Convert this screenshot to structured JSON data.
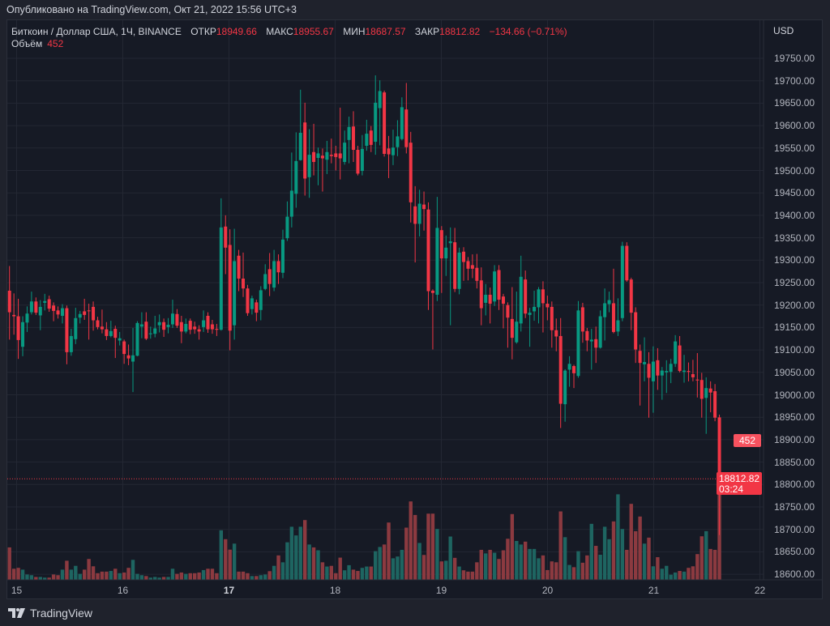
{
  "published": "Опубликовано на TradingView.com, Окт 21, 2022 15:56 UTC+3",
  "legend": {
    "symbol": "Биткоин / Доллар США, 1Ч, BINANCE",
    "open_label": "ОТКР",
    "open": "18949.66",
    "high_label": "МАКС",
    "high": "18955.67",
    "low_label": "МИН",
    "low": "18687.57",
    "close_label": "ЗАКР",
    "close": "18812.82",
    "change": "−134.66 (−0.71%)",
    "volume_label": "Объём",
    "volume": "452"
  },
  "price_axis": {
    "currency": "USD",
    "ticks": [
      "19750.00",
      "19700.00",
      "19650.00",
      "19600.00",
      "19550.00",
      "19500.00",
      "19450.00",
      "19400.00",
      "19350.00",
      "19300.00",
      "19250.00",
      "19200.00",
      "19150.00",
      "19100.00",
      "19050.00",
      "19000.00",
      "18950.00",
      "18900.00",
      "18850.00",
      "18800.00",
      "18750.00",
      "18700.00",
      "18650.00",
      "18600.00"
    ],
    "last_price_label": "18812.82",
    "countdown": "03:24",
    "last_volume_label": "452"
  },
  "time_axis": {
    "ticks": [
      {
        "label": "15",
        "bold": false
      },
      {
        "label": "16",
        "bold": false
      },
      {
        "label": "17",
        "bold": true
      },
      {
        "label": "18",
        "bold": false
      },
      {
        "label": "19",
        "bold": false
      },
      {
        "label": "20",
        "bold": false
      },
      {
        "label": "21",
        "bold": false
      },
      {
        "label": "22",
        "bold": false
      }
    ]
  },
  "footer": {
    "logo_text": "TradingView"
  },
  "colors": {
    "up": "#089981",
    "down": "#f23645",
    "up_volume": "#1e6561",
    "down_volume": "#8c3a40",
    "background": "#161a25",
    "grid": "#232733"
  },
  "chart_data": {
    "type": "candlestick",
    "title": "Биткоин / Доллар США, 1Ч, BINANCE",
    "interval": "1h",
    "x_range": [
      "Oct 14 2022 22:00",
      "Oct 21 2022 15:00"
    ],
    "ylim": [
      18600,
      19750
    ],
    "volume_axis": "overlay",
    "grid": true,
    "columns": [
      "open",
      "high",
      "low",
      "close",
      "volume"
    ],
    "candles": [
      [
        19232,
        19287,
        19123,
        19184,
        146
      ],
      [
        19178,
        19226,
        19134,
        19175,
        50
      ],
      [
        19175,
        19214,
        19080,
        19122,
        54
      ],
      [
        19107,
        19175,
        19086,
        19162,
        46
      ],
      [
        19161,
        19197,
        19140,
        19181,
        24
      ],
      [
        19184,
        19230,
        19179,
        19208,
        21
      ],
      [
        19208,
        19217,
        19178,
        19183,
        13
      ],
      [
        19177,
        19211,
        19144,
        19196,
        13
      ],
      [
        19205,
        19225,
        19188,
        19209,
        10
      ],
      [
        19213,
        19221,
        19185,
        19192,
        10
      ],
      [
        19199,
        19206,
        19164,
        19187,
        24
      ],
      [
        19188,
        19197,
        19170,
        19179,
        21
      ],
      [
        19176,
        19202,
        19159,
        19193,
        46
      ],
      [
        19193,
        19199,
        19068,
        19095,
        86
      ],
      [
        19095,
        19147,
        19087,
        19131,
        46
      ],
      [
        19124,
        19194,
        19113,
        19171,
        63
      ],
      [
        19172,
        19187,
        19159,
        19180,
        27
      ],
      [
        19186,
        19214,
        19167,
        19178,
        46
      ],
      [
        19188,
        19203,
        19123,
        19187,
        94
      ],
      [
        19196,
        19208,
        19143,
        19166,
        61
      ],
      [
        19166,
        19174,
        19146,
        19151,
        30
      ],
      [
        19152,
        19190,
        19137,
        19146,
        37
      ],
      [
        19146,
        19162,
        19122,
        19131,
        37
      ],
      [
        19131,
        19165,
        19128,
        19142,
        40
      ],
      [
        19147,
        19154,
        19082,
        19127,
        50
      ],
      [
        19121,
        19140,
        19110,
        19126,
        30
      ],
      [
        19119,
        19123,
        19069,
        19091,
        33
      ],
      [
        19088,
        19112,
        19066,
        19081,
        54
      ],
      [
        19074,
        19149,
        19006,
        19088,
        90
      ],
      [
        19087,
        19164,
        19086,
        19160,
        27
      ],
      [
        19152,
        19184,
        19126,
        19157,
        21
      ],
      [
        19163,
        19184,
        19122,
        19125,
        17
      ],
      [
        19135,
        19152,
        19125,
        19137,
        10
      ],
      [
        19136,
        19176,
        19128,
        19148,
        13
      ],
      [
        19155,
        19179,
        19139,
        19162,
        10
      ],
      [
        19162,
        19170,
        19129,
        19145,
        13
      ],
      [
        19151,
        19171,
        19137,
        19156,
        13
      ],
      [
        19157,
        19212,
        19149,
        19181,
        50
      ],
      [
        19180,
        19191,
        19149,
        19154,
        27
      ],
      [
        19162,
        19176,
        19115,
        19141,
        33
      ],
      [
        19141,
        19170,
        19137,
        19158,
        27
      ],
      [
        19165,
        19170,
        19135,
        19145,
        30
      ],
      [
        19152,
        19163,
        19136,
        19146,
        30
      ],
      [
        19146,
        19155,
        19123,
        19141,
        33
      ],
      [
        19151,
        19188,
        19140,
        19166,
        44
      ],
      [
        19176,
        19184,
        19138,
        19146,
        50
      ],
      [
        19157,
        19167,
        19136,
        19146,
        50
      ],
      [
        19147,
        19158,
        19131,
        19145,
        30
      ],
      [
        19145,
        19438,
        19143,
        19373,
        223
      ],
      [
        19375,
        19400,
        19269,
        19328,
        183
      ],
      [
        19334,
        19369,
        19099,
        19143,
        136
      ],
      [
        19155,
        19370,
        19123,
        19298,
        163
      ],
      [
        19310,
        19323,
        19231,
        19259,
        37
      ],
      [
        19259,
        19317,
        19218,
        19237,
        37
      ],
      [
        19237,
        19245,
        19176,
        19182,
        30
      ],
      [
        19191,
        19221,
        19179,
        19215,
        17
      ],
      [
        19206,
        19212,
        19164,
        19183,
        17
      ],
      [
        19189,
        19242,
        19166,
        19233,
        21
      ],
      [
        19236,
        19291,
        19233,
        19269,
        24
      ],
      [
        19280,
        19316,
        19220,
        19247,
        39
      ],
      [
        19239,
        19323,
        19231,
        19298,
        63
      ],
      [
        19298,
        19313,
        19247,
        19273,
        110
      ],
      [
        19272,
        19368,
        19260,
        19346,
        79
      ],
      [
        19349,
        19431,
        19343,
        19397,
        169
      ],
      [
        19397,
        19540,
        19373,
        19455,
        239
      ],
      [
        19448,
        19585,
        19417,
        19521,
        200
      ],
      [
        19523,
        19680,
        19522,
        19584,
        239
      ],
      [
        19607,
        19651,
        19444,
        19482,
        269
      ],
      [
        19485,
        19592,
        19439,
        19535,
        159
      ],
      [
        19541,
        19604,
        19489,
        19519,
        146
      ],
      [
        19528,
        19551,
        19467,
        19538,
        133
      ],
      [
        19533,
        19549,
        19453,
        19527,
        79
      ],
      [
        19524,
        19566,
        19492,
        19541,
        60
      ],
      [
        19535,
        19571,
        19516,
        19532,
        63
      ],
      [
        19538,
        19555,
        19500,
        19530,
        30
      ],
      [
        19538,
        19640,
        19480,
        19527,
        100
      ],
      [
        19519,
        19589,
        19513,
        19562,
        43
      ],
      [
        19568,
        19620,
        19516,
        19597,
        66
      ],
      [
        19598,
        19632,
        19519,
        19546,
        46
      ],
      [
        19546,
        19555,
        19489,
        19493,
        40
      ],
      [
        19499,
        19579,
        19489,
        19548,
        54
      ],
      [
        19555,
        19613,
        19544,
        19582,
        60
      ],
      [
        19589,
        19599,
        19541,
        19557,
        60
      ],
      [
        19564,
        19712,
        19535,
        19651,
        129
      ],
      [
        19639,
        19701,
        19556,
        19677,
        148
      ],
      [
        19674,
        19678,
        19531,
        19537,
        159
      ],
      [
        19549,
        19577,
        19483,
        19536,
        258
      ],
      [
        19534,
        19591,
        19512,
        19551,
        97
      ],
      [
        19552,
        19612,
        19532,
        19576,
        105
      ],
      [
        19570,
        19663,
        19567,
        19641,
        135
      ],
      [
        19636,
        19695,
        19538,
        19552,
        235
      ],
      [
        19562,
        19586,
        19384,
        19429,
        353
      ],
      [
        19420,
        19465,
        19295,
        19381,
        292
      ],
      [
        19381,
        19457,
        19353,
        19426,
        166
      ],
      [
        19424,
        19453,
        19366,
        19414,
        112
      ],
      [
        19413,
        19429,
        19189,
        19231,
        298
      ],
      [
        19232,
        19235,
        19101,
        19227,
        298
      ],
      [
        19223,
        19441,
        19209,
        19372,
        229
      ],
      [
        19367,
        19376,
        19227,
        19304,
        83
      ],
      [
        19304,
        19355,
        19265,
        19328,
        86
      ],
      [
        19338,
        19373,
        19155,
        19342,
        195
      ],
      [
        19340,
        19372,
        19229,
        19236,
        99
      ],
      [
        19236,
        19328,
        19224,
        19317,
        60
      ],
      [
        19319,
        19329,
        19254,
        19296,
        43
      ],
      [
        19298,
        19307,
        19255,
        19281,
        37
      ],
      [
        19289,
        19313,
        19260,
        19281,
        37
      ],
      [
        19283,
        19314,
        19237,
        19254,
        79
      ],
      [
        19255,
        19284,
        19155,
        19193,
        135
      ],
      [
        19205,
        19247,
        19177,
        19223,
        119
      ],
      [
        19223,
        19239,
        19159,
        19203,
        135
      ],
      [
        19208,
        19289,
        19198,
        19275,
        122
      ],
      [
        19278,
        19289,
        19189,
        19212,
        94
      ],
      [
        19219,
        19225,
        19148,
        19203,
        133
      ],
      [
        19200,
        19206,
        19105,
        19172,
        185
      ],
      [
        19169,
        19240,
        19079,
        19127,
        296
      ],
      [
        19117,
        19230,
        19114,
        19163,
        175
      ],
      [
        19159,
        19310,
        19141,
        19263,
        159
      ],
      [
        19257,
        19277,
        19171,
        19181,
        172
      ],
      [
        19178,
        19194,
        19107,
        19183,
        139
      ],
      [
        19186,
        19232,
        19165,
        19196,
        139
      ],
      [
        19195,
        19240,
        19159,
        19235,
        97
      ],
      [
        19235,
        19253,
        19139,
        19204,
        110
      ],
      [
        19203,
        19221,
        19166,
        19195,
        44
      ],
      [
        19196,
        19208,
        19105,
        19144,
        83
      ],
      [
        19144,
        19170,
        19097,
        19130,
        79
      ],
      [
        19131,
        19171,
        18926,
        18980,
        308
      ],
      [
        18979,
        19057,
        18940,
        19054,
        192
      ],
      [
        19056,
        19086,
        19018,
        19069,
        67
      ],
      [
        19064,
        19067,
        19015,
        19048,
        57
      ],
      [
        19042,
        19209,
        19038,
        19188,
        129
      ],
      [
        19195,
        19205,
        19116,
        19141,
        77
      ],
      [
        19142,
        19149,
        19097,
        19121,
        110
      ],
      [
        19119,
        19147,
        19056,
        19123,
        252
      ],
      [
        19124,
        19152,
        19071,
        19105,
        153
      ],
      [
        19105,
        19188,
        19103,
        19175,
        113
      ],
      [
        19173,
        19237,
        19121,
        19204,
        239
      ],
      [
        19202,
        19230,
        19184,
        19211,
        183
      ],
      [
        19204,
        19281,
        19137,
        19140,
        263
      ],
      [
        19141,
        19215,
        19131,
        19166,
        385
      ],
      [
        19171,
        19341,
        19164,
        19332,
        229
      ],
      [
        19332,
        19340,
        19252,
        19255,
        135
      ],
      [
        19257,
        19261,
        19144,
        19183,
        342
      ],
      [
        19184,
        19195,
        19071,
        19101,
        219
      ],
      [
        19098,
        19112,
        18976,
        19071,
        285
      ],
      [
        19068,
        19128,
        19030,
        19073,
        163
      ],
      [
        19069,
        19095,
        18949,
        19038,
        190
      ],
      [
        19030,
        19108,
        18960,
        19074,
        61
      ],
      [
        19077,
        19104,
        19011,
        19043,
        102
      ],
      [
        19043,
        19062,
        18989,
        19054,
        50
      ],
      [
        19050,
        19077,
        19004,
        19053,
        63
      ],
      [
        19051,
        19080,
        19026,
        19069,
        23
      ],
      [
        19069,
        19133,
        19062,
        19119,
        33
      ],
      [
        19110,
        19131,
        19050,
        19053,
        40
      ],
      [
        19051,
        19089,
        19027,
        19054,
        37
      ],
      [
        19053,
        19072,
        19030,
        19051,
        54
      ],
      [
        19046,
        19078,
        19030,
        19039,
        61
      ],
      [
        19034,
        19093,
        18994,
        19032,
        116
      ],
      [
        19033,
        19049,
        18949,
        18991,
        196
      ],
      [
        18993,
        19039,
        18913,
        19015,
        219
      ],
      [
        19014,
        19030,
        18961,
        19005,
        139
      ],
      [
        19008,
        19024,
        18941,
        18949,
        135
      ],
      [
        18949.66,
        18955.67,
        18687.57,
        18812.82,
        452
      ]
    ]
  }
}
